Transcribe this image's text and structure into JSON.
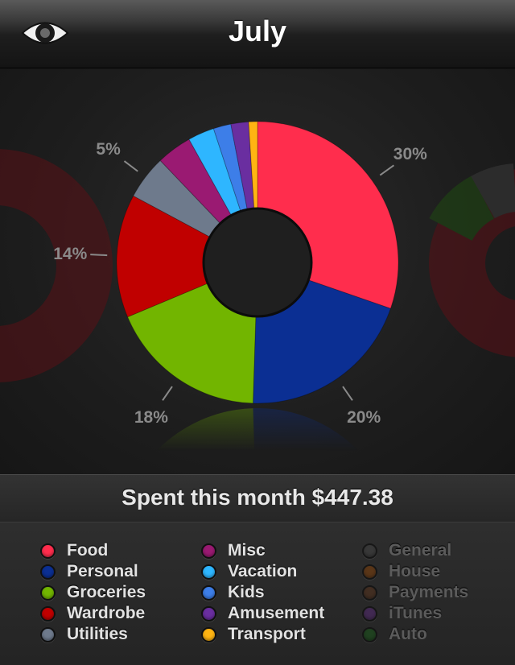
{
  "header": {
    "title": "July",
    "eye_icon": "eye-icon"
  },
  "chart_data": {
    "type": "pie",
    "style": "donut",
    "start_angle_deg": 0,
    "direction": "clockwise",
    "slices": [
      {
        "name": "Food",
        "value": 30,
        "color": "#ff2d4d",
        "label": "30%"
      },
      {
        "name": "Personal",
        "value": 20,
        "color": "#0b2f93",
        "label": "20%"
      },
      {
        "name": "Groceries",
        "value": 18,
        "color": "#72b500",
        "label": "18%"
      },
      {
        "name": "Wardrobe",
        "value": 14,
        "color": "#c00000",
        "label": "14%"
      },
      {
        "name": "Utilities",
        "value": 5,
        "color": "#6e7a8c",
        "label": "5%"
      },
      {
        "name": "Misc",
        "value": 4,
        "color": "#9a1a72",
        "label": ""
      },
      {
        "name": "Vacation",
        "value": 3,
        "color": "#2eb6ff",
        "label": ""
      },
      {
        "name": "Kids",
        "value": 2,
        "color": "#3d7ee8",
        "label": ""
      },
      {
        "name": "Amusement",
        "value": 2,
        "color": "#6a2ea0",
        "label": ""
      },
      {
        "name": "Transport",
        "value": 1,
        "color": "#ffb412",
        "label": ""
      }
    ]
  },
  "summary": {
    "spent_text": "Spent this month $447.38"
  },
  "legend": {
    "columns": [
      [
        {
          "name": "Food",
          "color": "#ff2d4d",
          "active": true
        },
        {
          "name": "Personal",
          "color": "#0b2f93",
          "active": true
        },
        {
          "name": "Groceries",
          "color": "#72b500",
          "active": true
        },
        {
          "name": "Wardrobe",
          "color": "#c00000",
          "active": true
        },
        {
          "name": "Utilities",
          "color": "#6e7a8c",
          "active": true
        }
      ],
      [
        {
          "name": "Misc",
          "color": "#9a1a72",
          "active": true
        },
        {
          "name": "Vacation",
          "color": "#2eb6ff",
          "active": true
        },
        {
          "name": "Kids",
          "color": "#3d7ee8",
          "active": true
        },
        {
          "name": "Amusement",
          "color": "#6a2ea0",
          "active": true
        },
        {
          "name": "Transport",
          "color": "#ffb412",
          "active": true
        }
      ],
      [
        {
          "name": "General",
          "color": "#3c3c3c",
          "active": false
        },
        {
          "name": "House",
          "color": "#6a3a12",
          "active": false
        },
        {
          "name": "Payments",
          "color": "#4a3020",
          "active": false
        },
        {
          "name": "iTunes",
          "color": "#4a2a60",
          "active": false
        },
        {
          "name": "Auto",
          "color": "#1e4a1e",
          "active": false
        }
      ]
    ]
  }
}
